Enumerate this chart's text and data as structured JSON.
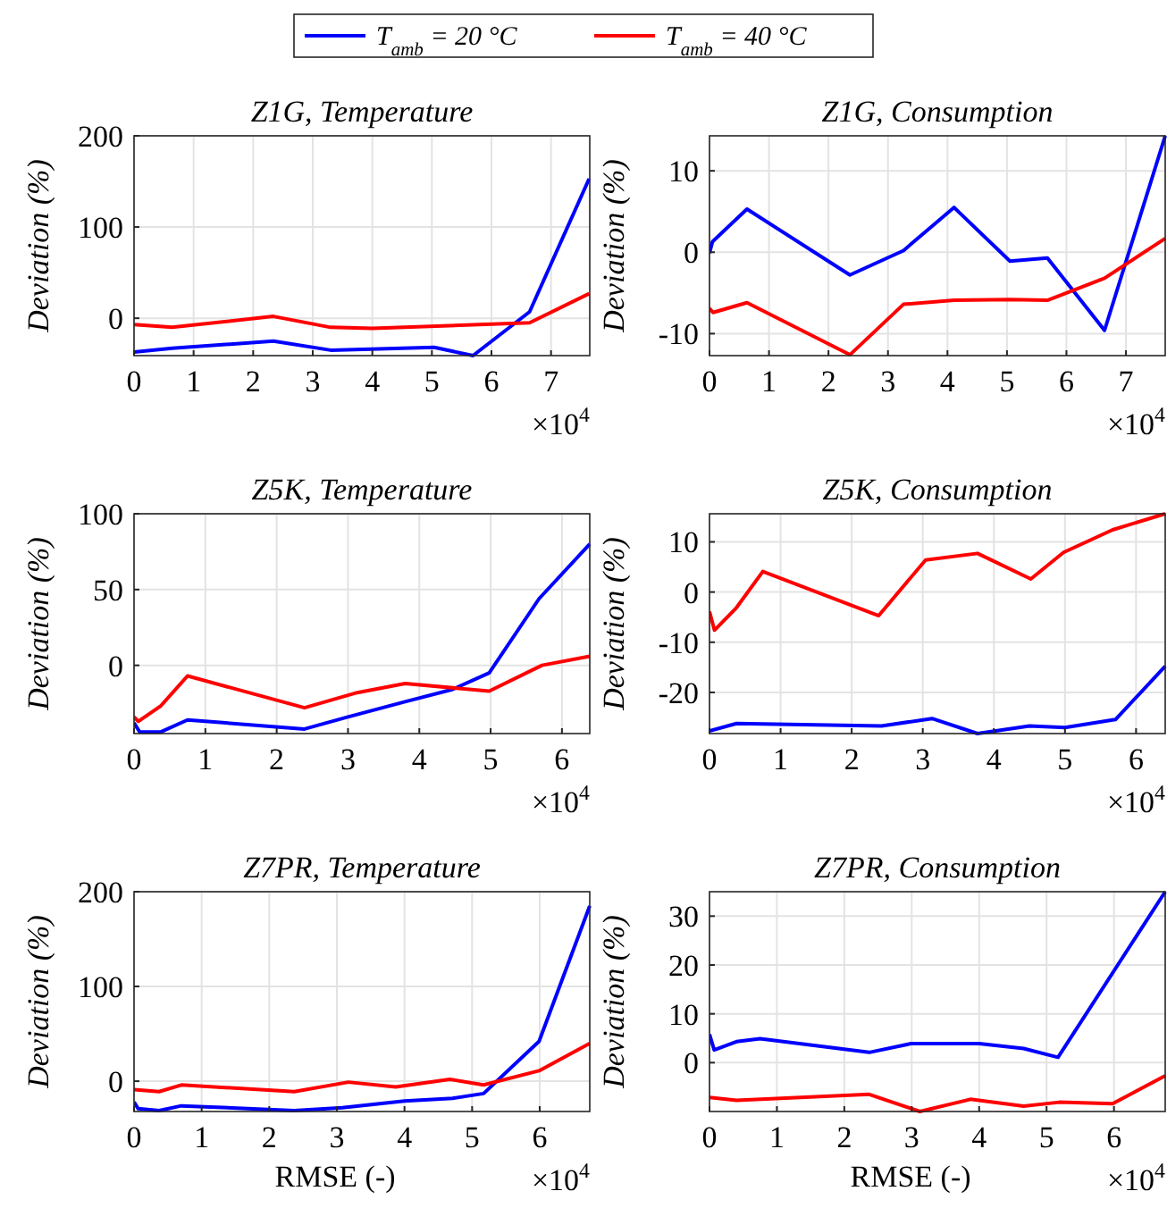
{
  "chart_data": [
    {
      "type": "line",
      "title": "Z1G, Temperature",
      "ylabel": "Deviation (%)",
      "xlim": [
        0,
        7.65
      ],
      "xticks": [
        0,
        1,
        2,
        3,
        4,
        5,
        6,
        7
      ],
      "ylim": [
        -41,
        200
      ],
      "yticks": [
        0,
        100,
        200
      ],
      "grid": true,
      "legend": "top",
      "annotations": [
        "×10$^{4}$"
      ],
      "series": [
        {
          "name": "T$_{amb}$ = 20 °C",
          "color": "#0000ff",
          "x": [
            0,
            0.64,
            2.34,
            3.3,
            5.04,
            5.69,
            6.64,
            7.64
          ],
          "values": [
            -37,
            -33,
            -25,
            -35,
            -32,
            -41,
            7,
            153
          ]
        },
        {
          "name": "T$_{amb}$ = 40 °C",
          "color": "#ff0000",
          "x": [
            0,
            0.64,
            2.34,
            3.3,
            4,
            6.64,
            7.64
          ],
          "values": [
            -7,
            -10,
            2,
            -10,
            -11,
            -5,
            27
          ]
        }
      ]
    },
    {
      "type": "line",
      "title": "Z1G, Consumption",
      "ylabel": "Deviation (%)",
      "xlim": [
        0,
        7.66
      ],
      "xticks": [
        0,
        1,
        2,
        3,
        4,
        5,
        6,
        7
      ],
      "ylim": [
        -12.7,
        14.3
      ],
      "yticks": [
        -10,
        0,
        10
      ],
      "grid": true,
      "annotations": [
        "×10$^{4}$"
      ],
      "series": [
        {
          "color": "#0000ff",
          "x": [
            0,
            0.05,
            0.63,
            2.36,
            3.26,
            4.11,
            5.05,
            5.68,
            6.64,
            7.66
          ],
          "values": [
            -0.1,
            1.3,
            5.3,
            -2.8,
            0.2,
            5.5,
            -1.1,
            -0.7,
            -9.6,
            14.3
          ]
        },
        {
          "color": "#ff0000",
          "x": [
            0,
            0.06,
            0.63,
            2.36,
            3.26,
            4.11,
            5.05,
            5.68,
            6.64,
            7.66
          ],
          "values": [
            -6.9,
            -7.4,
            -6.2,
            -12.6,
            -6.4,
            -5.9,
            -5.8,
            -5.9,
            -3.2,
            1.7
          ]
        }
      ]
    },
    {
      "type": "line",
      "title": "Z5K, Temperature",
      "ylabel": "Deviation (%)",
      "xlim": [
        0,
        6.39
      ],
      "xticks": [
        0,
        1,
        2,
        3,
        4,
        5,
        6
      ],
      "ylim": [
        -45,
        100
      ],
      "yticks": [
        0,
        50,
        100
      ],
      "grid": true,
      "annotations": [
        "×10$^{4}$"
      ],
      "series": [
        {
          "color": "#0000ff",
          "x": [
            0,
            0.08,
            0.37,
            0.75,
            2.39,
            3,
            3.8,
            4.46,
            4.98,
            5.68,
            6.39
          ],
          "values": [
            -38,
            -44,
            -44,
            -36,
            -42,
            -34,
            -24,
            -16,
            -5,
            44,
            80
          ]
        },
        {
          "color": "#ff0000",
          "x": [
            0,
            0.06,
            0.37,
            0.75,
            2.39,
            3.13,
            3.8,
            4.98,
            5.72,
            6.39
          ],
          "values": [
            -34,
            -37,
            -27,
            -7,
            -28,
            -18,
            -12,
            -17,
            0,
            6
          ]
        }
      ]
    },
    {
      "type": "line",
      "title": "Z5K, Consumption",
      "ylabel": "Deviation (%)",
      "xlim": [
        0,
        6.41
      ],
      "xticks": [
        0,
        1,
        2,
        3,
        4,
        5,
        6
      ],
      "ylim": [
        -28.2,
        15.6
      ],
      "yticks": [
        -20,
        -10,
        0,
        10
      ],
      "grid": true,
      "annotations": [
        "×10$^{4}$"
      ],
      "series": [
        {
          "color": "#0000ff",
          "x": [
            0,
            0.38,
            2.42,
            3.13,
            3.77,
            4.5,
            5,
            5.71,
            6.41
          ],
          "values": [
            -27.7,
            -26.2,
            -26.7,
            -25.2,
            -28.2,
            -26.7,
            -27,
            -25.4,
            -14.8
          ]
        },
        {
          "color": "#ff0000",
          "x": [
            0,
            0.07,
            0.38,
            0.75,
            2.38,
            3.04,
            3.77,
            4.52,
            4.98,
            5.67,
            6.41
          ],
          "values": [
            -3.9,
            -7.6,
            -3.1,
            4.1,
            -4.7,
            6.4,
            7.7,
            2.6,
            7.9,
            12.4,
            15.6
          ]
        }
      ]
    },
    {
      "type": "line",
      "title": "Z7PR, Temperature",
      "xlabel": "RMSE (-)",
      "ylabel": "Deviation (%)",
      "xlim": [
        0,
        6.74
      ],
      "xticks": [
        0,
        1,
        2,
        3,
        4,
        5,
        6
      ],
      "ylim": [
        -32,
        200
      ],
      "yticks": [
        0,
        100,
        200
      ],
      "grid": true,
      "annotations": [
        "×10$^{4}$"
      ],
      "series": [
        {
          "color": "#0000ff",
          "x": [
            0,
            0.06,
            0.37,
            0.7,
            2.37,
            3.08,
            4,
            4.71,
            5.17,
            5.99,
            6.74
          ],
          "values": [
            -22,
            -29,
            -31,
            -26,
            -31,
            -28,
            -21,
            -18,
            -13,
            42,
            185
          ]
        },
        {
          "color": "#ff0000",
          "x": [
            0,
            0.37,
            0.7,
            2.37,
            3.17,
            3.87,
            4.67,
            5.17,
            5.99,
            6.74
          ],
          "values": [
            -9,
            -11,
            -4,
            -11,
            -1,
            -6,
            2,
            -4,
            11,
            40
          ]
        }
      ]
    },
    {
      "type": "line",
      "title": "Z7PR, Consumption",
      "xlabel": "RMSE (-)",
      "ylabel": "Deviation (%)",
      "xlim": [
        0,
        6.76
      ],
      "xticks": [
        0,
        1,
        2,
        3,
        4,
        5,
        6
      ],
      "ylim": [
        -10,
        35
      ],
      "yticks": [
        0,
        10,
        20,
        30
      ],
      "grid": true,
      "annotations": [
        "×10$^{4}$"
      ],
      "series": [
        {
          "color": "#0000ff",
          "x": [
            0,
            0.07,
            0.4,
            0.75,
            2.37,
            2.99,
            4,
            4.66,
            5.17,
            6.76
          ],
          "values": [
            5.8,
            2.6,
            4.3,
            4.9,
            2.1,
            3.9,
            3.9,
            2.9,
            1.1,
            35
          ]
        },
        {
          "color": "#ff0000",
          "x": [
            0,
            0.4,
            2.37,
            3.12,
            3.87,
            4.66,
            5.19,
            5.98,
            6.76
          ],
          "values": [
            -7.1,
            -7.7,
            -6.5,
            -10,
            -7.5,
            -8.9,
            -8.1,
            -8.4,
            -2.7
          ]
        }
      ]
    }
  ]
}
